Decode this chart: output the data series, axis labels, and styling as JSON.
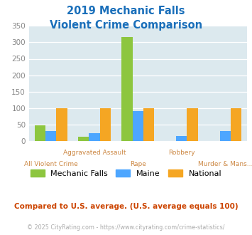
{
  "title_line1": "2019 Mechanic Falls",
  "title_line2": "Violent Crime Comparison",
  "title_color": "#1a6fba",
  "categories": [
    "All Violent Crime",
    "Aggravated Assault",
    "Rape",
    "Robbery",
    "Murder & Mans..."
  ],
  "mechanic_falls": [
    47,
    14,
    315,
    0,
    0
  ],
  "maine": [
    30,
    23,
    90,
    16,
    31
  ],
  "national": [
    100,
    100,
    100,
    100,
    100
  ],
  "colors": {
    "mechanic_falls": "#8dc63f",
    "maine": "#4da6ff",
    "national": "#f5a623"
  },
  "ylim": [
    0,
    350
  ],
  "yticks": [
    0,
    50,
    100,
    150,
    200,
    250,
    300,
    350
  ],
  "plot_bg": "#dce9ee",
  "footer_text": "Compared to U.S. average. (U.S. average equals 100)",
  "footer_color": "#cc4400",
  "copyright_text": "© 2025 CityRating.com - https://www.cityrating.com/crime-statistics/",
  "copyright_color": "#aaaaaa",
  "bar_width": 0.25,
  "label_color": "#cc8844",
  "tick_color": "#888888"
}
